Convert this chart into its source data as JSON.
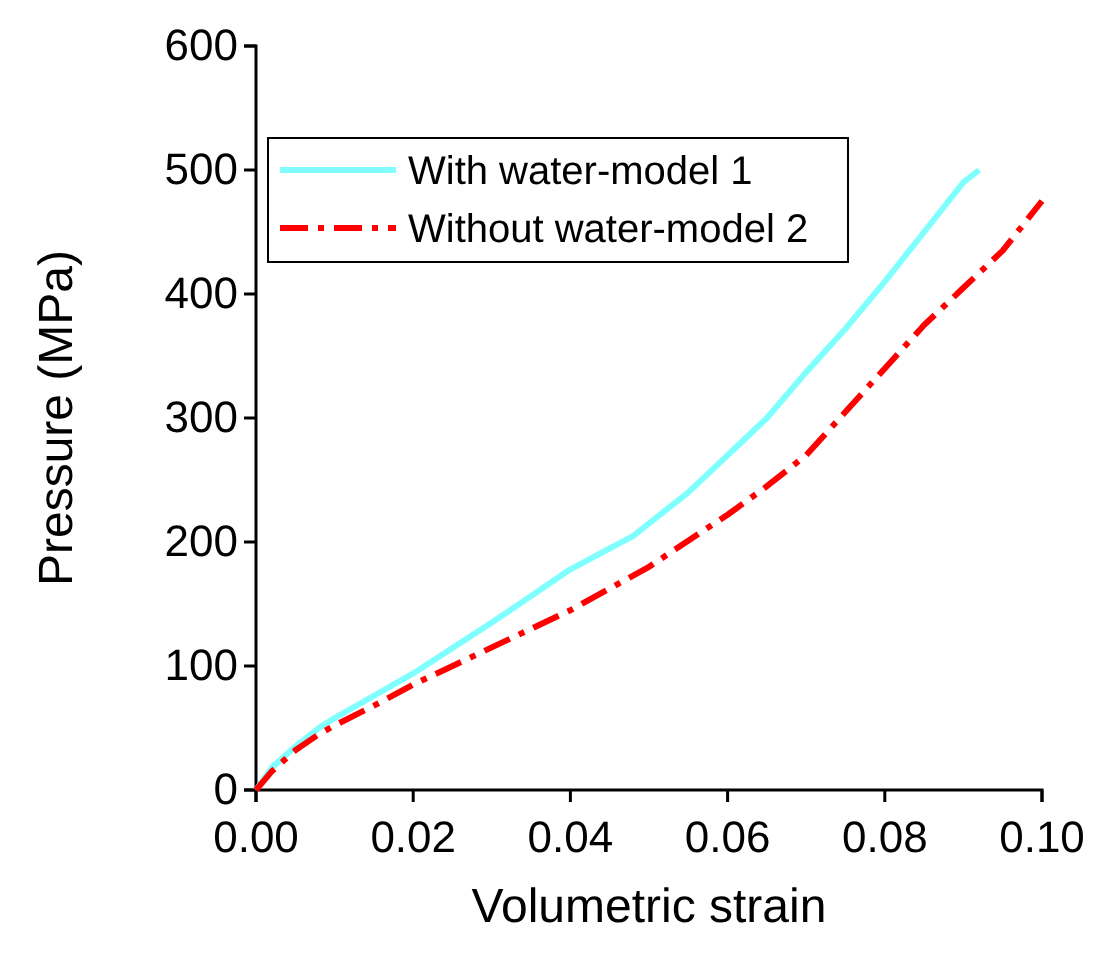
{
  "chart_data": {
    "type": "line",
    "xlabel": "Volumetric strain",
    "ylabel": "Pressure (MPa)",
    "xlim": [
      0,
      0.1
    ],
    "xticks": [
      {
        "value": 0,
        "label": "0.00"
      },
      {
        "value": 0.02,
        "label": "0.02"
      },
      {
        "value": 0.04,
        "label": "0.04"
      },
      {
        "value": 0.06,
        "label": "0.06"
      },
      {
        "value": 0.08,
        "label": "0.08"
      },
      {
        "value": 0.1,
        "label": "0.10"
      }
    ],
    "ylim": [
      0,
      600
    ],
    "yticks": [
      0,
      100,
      200,
      300,
      400,
      500,
      600
    ],
    "legend": "top left",
    "grid": false,
    "series": [
      {
        "name": "With water-model 1",
        "color": "#80ffff",
        "line_style": "solid",
        "x": [
          0,
          0.002,
          0.005,
          0.008,
          0.01,
          0.015,
          0.02,
          0.03,
          0.04,
          0.048,
          0.055,
          0.06,
          0.065,
          0.07,
          0.075,
          0.08,
          0.085,
          0.09,
          0.092
        ],
        "values": [
          0,
          18,
          35,
          50,
          58,
          76,
          94,
          135,
          178,
          205,
          240,
          270,
          300,
          337,
          372,
          410,
          450,
          490,
          500
        ]
      },
      {
        "name": "Without water-model 2",
        "color": "#ff0000",
        "line_style": "dashdot",
        "x": [
          0,
          0.002,
          0.005,
          0.008,
          0.01,
          0.015,
          0.02,
          0.03,
          0.04,
          0.05,
          0.06,
          0.065,
          0.07,
          0.075,
          0.08,
          0.085,
          0.09,
          0.095,
          0.1
        ],
        "values": [
          0,
          15,
          32,
          45,
          52,
          68,
          85,
          115,
          145,
          180,
          222,
          245,
          270,
          305,
          340,
          375,
          405,
          435,
          475
        ]
      }
    ]
  }
}
